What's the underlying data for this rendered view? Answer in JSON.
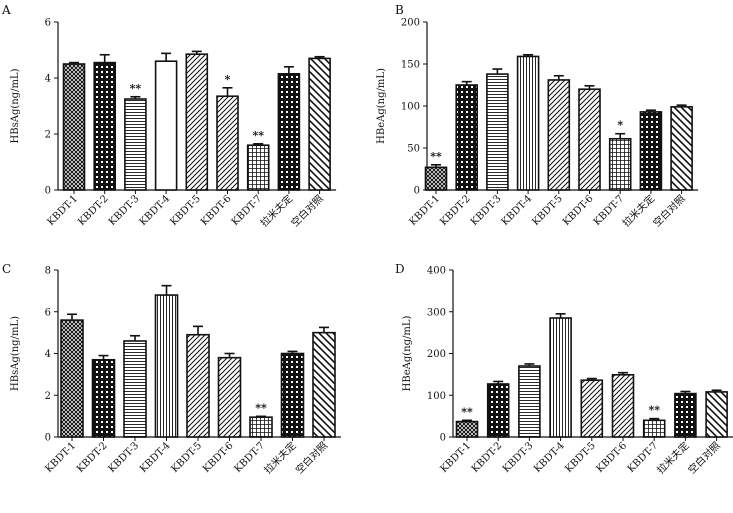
{
  "chart_data": [
    {
      "type": "bar",
      "panel": "A",
      "ylabel": "HBsAg(ng/mL)",
      "ylim": [
        0,
        6
      ],
      "yticks": [
        0,
        2,
        4,
        6
      ],
      "categories": [
        "KBDT-1",
        "KBDT-2",
        "KBDT-3",
        "KBDT-4",
        "KBDT-5",
        "KBDT-6",
        "KBDT-7",
        "拉米夫定",
        "空白对照"
      ],
      "values": [
        4.5,
        4.55,
        3.25,
        4.6,
        4.85,
        3.35,
        1.6,
        4.15,
        4.7
      ],
      "errors": [
        0.05,
        0.28,
        0.08,
        0.28,
        0.1,
        0.3,
        0.05,
        0.25,
        0.06
      ],
      "significance": [
        "",
        "",
        "**",
        "",
        "",
        "*",
        "**",
        "",
        ""
      ],
      "patterns": [
        "crosshatch",
        "dots",
        "hlines",
        "blank",
        "diag",
        "diag",
        "grid",
        "dots",
        "backdiag"
      ]
    },
    {
      "type": "bar",
      "panel": "B",
      "ylabel": "HBeAg(ng/mL)",
      "ylim": [
        0,
        200
      ],
      "yticks": [
        0,
        50,
        100,
        150,
        200
      ],
      "categories": [
        "KBDT-1",
        "KBDT-2",
        "KBDT-3",
        "KBDT-4",
        "KBDT-5",
        "KBDT-6",
        "KBDT-7",
        "拉米夫定",
        "空白对照"
      ],
      "values": [
        27,
        125,
        138,
        159,
        131,
        120,
        61,
        93,
        99
      ],
      "errors": [
        3,
        4,
        6,
        2,
        5,
        4,
        6,
        2,
        2
      ],
      "significance": [
        "**",
        "",
        "",
        "",
        "",
        "",
        "*",
        "",
        ""
      ],
      "patterns": [
        "crosshatch",
        "dots",
        "hlines",
        "vlines",
        "diag",
        "diag",
        "grid",
        "dots",
        "backdiag"
      ]
    },
    {
      "type": "bar",
      "panel": "C",
      "ylabel": "HBsAg(ng/mL)",
      "ylim": [
        0,
        8
      ],
      "yticks": [
        0,
        2,
        4,
        6,
        8
      ],
      "categories": [
        "KBDT-1",
        "KBDT-2",
        "KBDT-3",
        "KBDT-4",
        "KBDT-5",
        "KBDT-6",
        "KBDT-7",
        "拉米夫定",
        "空白对照"
      ],
      "values": [
        5.6,
        3.7,
        4.6,
        6.8,
        4.9,
        3.8,
        0.95,
        4.0,
        5.0
      ],
      "errors": [
        0.28,
        0.2,
        0.25,
        0.45,
        0.4,
        0.2,
        0.04,
        0.1,
        0.25
      ],
      "significance": [
        "",
        "",
        "",
        "",
        "",
        "",
        "**",
        "",
        ""
      ],
      "patterns": [
        "crosshatch",
        "dots",
        "hlines",
        "vlines",
        "diag",
        "diag",
        "grid",
        "dots",
        "backdiag"
      ]
    },
    {
      "type": "bar",
      "panel": "D",
      "ylabel": "HBeAg(ng/mL)",
      "ylim": [
        0,
        400
      ],
      "yticks": [
        0,
        100,
        200,
        300,
        400
      ],
      "categories": [
        "KBDT-1",
        "KBDT-2",
        "KBDT-3",
        "KBDT-4",
        "KBDT-5",
        "KBDT-6",
        "KBDT-7",
        "拉米夫定",
        "空白对照"
      ],
      "values": [
        37,
        127,
        170,
        285,
        136,
        149,
        40,
        104,
        108
      ],
      "errors": [
        3,
        6,
        5,
        10,
        4,
        5,
        4,
        5,
        4
      ],
      "significance": [
        "**",
        "",
        "",
        "",
        "",
        "",
        "**",
        "",
        ""
      ],
      "patterns": [
        "crosshatch",
        "dots",
        "hlines",
        "vlines",
        "diag",
        "diag",
        "grid",
        "dots",
        "backdiag"
      ]
    }
  ]
}
